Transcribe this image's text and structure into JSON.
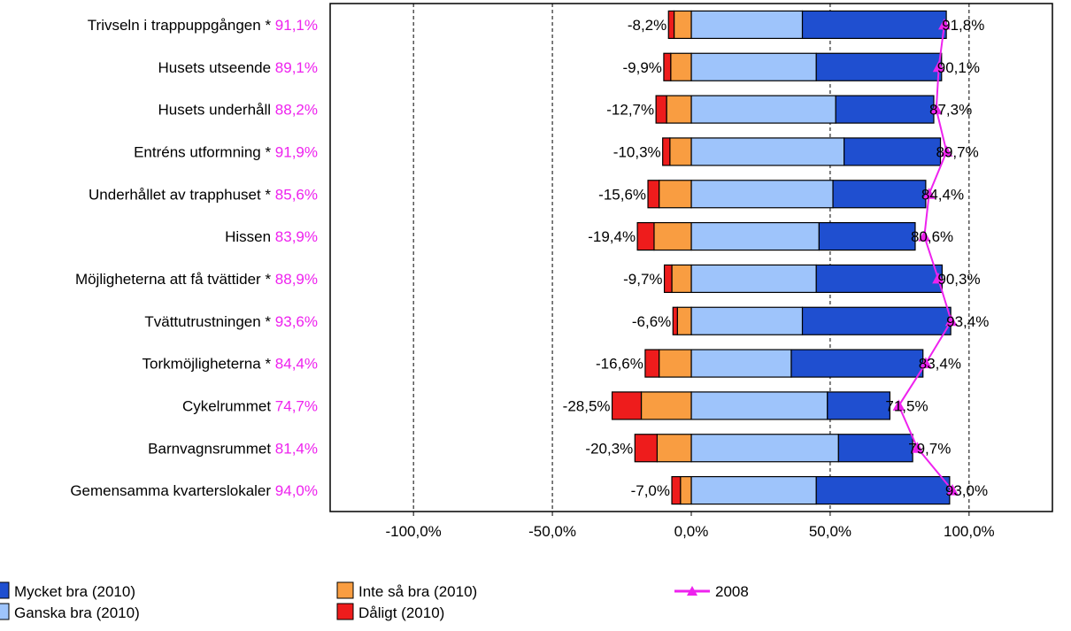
{
  "chart_data": {
    "type": "bar",
    "orientation": "horizontal",
    "stacked": "diverging",
    "title": "",
    "xlabel": "",
    "ylabel": "",
    "xlim": [
      -130,
      130
    ],
    "x_ticks": [
      -100,
      -50,
      0,
      50,
      100
    ],
    "x_tick_labels": [
      "-100,0%",
      "-50,0%",
      "0,0%",
      "50,0%",
      "100,0%"
    ],
    "grid": "vertical-dashed",
    "legend_position": "bottom",
    "categories": [
      "Trivseln i trappuppgången *",
      "Husets utseende",
      "Husets underhåll",
      "Entréns utformning *",
      "Underhållet av trapphuset *",
      "Hissen",
      "Möjligheterna att få tvättider *",
      "Tvättutrustningen *",
      "Torkmöjligheterna *",
      "Cykelrummet",
      "Barnvagnsrummet",
      "Gemensamma kvarterslokaler"
    ],
    "category_values": [
      "91,1%",
      "89,1%",
      "88,2%",
      "91,9%",
      "85,6%",
      "83,9%",
      "88,9%",
      "93,6%",
      "84,4%",
      "74,7%",
      "81,4%",
      "94,0%"
    ],
    "series": [
      {
        "name": "Mycket bra (2010)",
        "color": "#1f4fd0",
        "values": [
          51.8,
          45.1,
          35.3,
          34.7,
          33.4,
          34.6,
          45.3,
          53.4,
          47.4,
          22.5,
          26.7,
          48.0
        ]
      },
      {
        "name": "Ganska bra (2010)",
        "color": "#9ec4fb",
        "values": [
          40.0,
          45.0,
          52.0,
          55.0,
          51.0,
          46.0,
          45.0,
          40.0,
          36.0,
          49.0,
          53.0,
          45.0
        ]
      },
      {
        "name": "Inte så bra (2010)",
        "color": "#f99d41",
        "values": [
          -6.2,
          -7.4,
          -8.9,
          -7.7,
          -11.6,
          -13.4,
          -7.0,
          -5.0,
          -11.6,
          -18.0,
          -12.3,
          -3.9
        ]
      },
      {
        "name": "Dåligt (2010)",
        "color": "#ee1c1c",
        "values": [
          -2.0,
          -2.5,
          -3.8,
          -2.6,
          -4.0,
          -6.0,
          -2.7,
          -1.6,
          -5.0,
          -10.5,
          -8.0,
          -3.1
        ]
      },
      {
        "name": "2008",
        "color": "#ee22ee",
        "type": "line",
        "values": [
          91.1,
          89.1,
          88.2,
          91.9,
          85.6,
          83.9,
          88.9,
          93.6,
          84.4,
          74.7,
          81.4,
          94.0
        ]
      }
    ],
    "negative_labels": [
      "-8,2%",
      "-9,9%",
      "-12,7%",
      "-10,3%",
      "-15,6%",
      "-19,4%",
      "-9,7%",
      "-6,6%",
      "-16,6%",
      "-28,5%",
      "-20,3%",
      "-7,0%"
    ],
    "positive_labels": [
      "91,8%",
      "90,1%",
      "87,3%",
      "89,7%",
      "84,4%",
      "80,6%",
      "90,3%",
      "93,4%",
      "83,4%",
      "71,5%",
      "79,7%",
      "93,0%"
    ],
    "colors": {
      "label_text": "#000000",
      "highlight_text": "#ee22ee",
      "axis": "#000000",
      "grid": "#000000"
    }
  }
}
